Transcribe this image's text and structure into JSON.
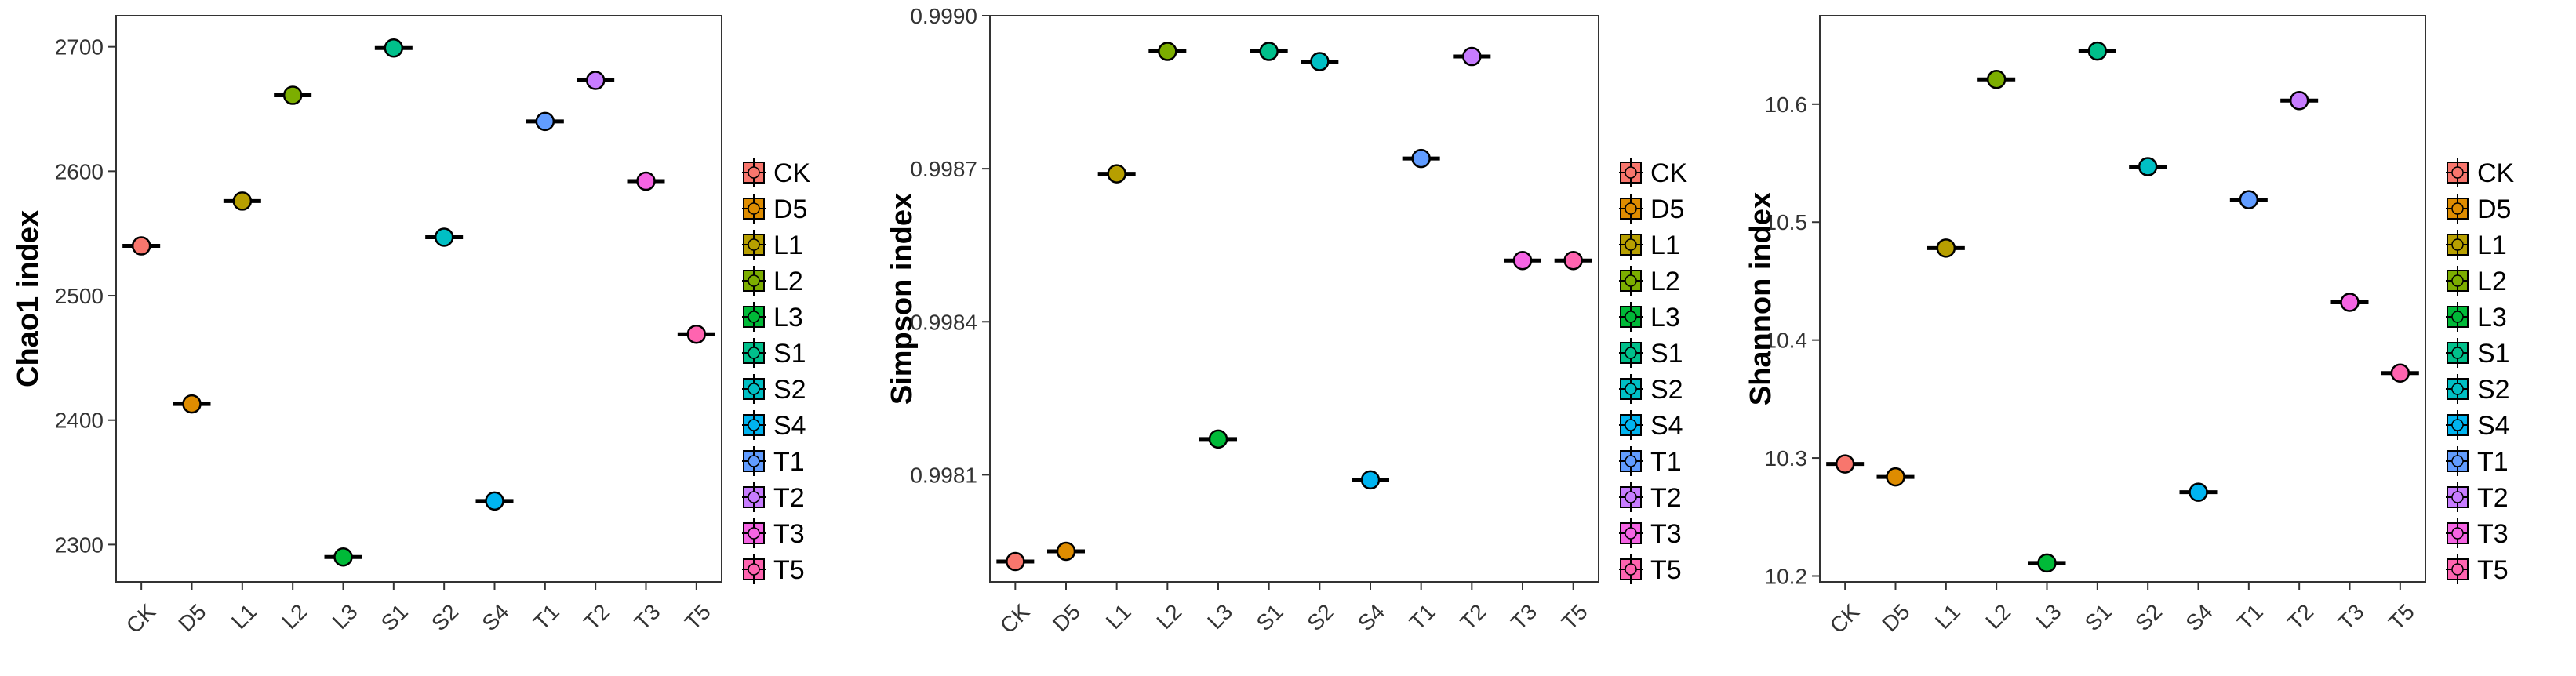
{
  "chart_data": [
    {
      "type": "scatter",
      "ylabel": "Chao1 index",
      "categories": [
        "CK",
        "D5",
        "L1",
        "L2",
        "L3",
        "S1",
        "S2",
        "S4",
        "T1",
        "T2",
        "T3",
        "T5"
      ],
      "values": [
        2540,
        2413,
        2576,
        2661,
        2290,
        2699,
        2547,
        2335,
        2640,
        2673,
        2592,
        2469
      ],
      "yticks": [
        "2300",
        "2400",
        "2500",
        "2600",
        "2700"
      ],
      "ylim": [
        2270,
        2725
      ],
      "legend_position": "right"
    },
    {
      "type": "scatter",
      "ylabel": "Simpson index",
      "categories": [
        "CK",
        "D5",
        "L1",
        "L2",
        "L3",
        "S1",
        "S2",
        "S4",
        "T1",
        "T2",
        "T3",
        "T5"
      ],
      "values": [
        0.99793,
        0.99795,
        0.99869,
        0.99893,
        0.99817,
        0.99893,
        0.99891,
        0.99809,
        0.99872,
        0.99892,
        0.99852,
        0.99852
      ],
      "yticks": [
        "0.9981",
        "0.9984",
        "0.9987",
        "0.9990"
      ],
      "ylim": [
        0.99789,
        0.999
      ],
      "legend_position": "right"
    },
    {
      "type": "scatter",
      "ylabel": "Shannon index",
      "categories": [
        "CK",
        "D5",
        "L1",
        "L2",
        "L3",
        "S1",
        "S2",
        "S4",
        "T1",
        "T2",
        "T3",
        "T5"
      ],
      "values": [
        10.295,
        10.284,
        10.478,
        10.621,
        10.211,
        10.645,
        10.547,
        10.271,
        10.519,
        10.603,
        10.432,
        10.372
      ],
      "yticks": [
        "10.2",
        "10.3",
        "10.4",
        "10.5",
        "10.6"
      ],
      "ylim": [
        10.195,
        10.675
      ],
      "legend_position": "right"
    }
  ],
  "legend": {
    "entries": [
      "CK",
      "D5",
      "L1",
      "L2",
      "L3",
      "S1",
      "S2",
      "S4",
      "T1",
      "T2",
      "T3",
      "T5"
    ],
    "colors": [
      "#F8766D",
      "#DE8C00",
      "#B79F00",
      "#7CAE00",
      "#00BA38",
      "#00C08B",
      "#00BFC4",
      "#00B4F0",
      "#619CFF",
      "#C77CFF",
      "#F564E3",
      "#FF64B0"
    ]
  }
}
